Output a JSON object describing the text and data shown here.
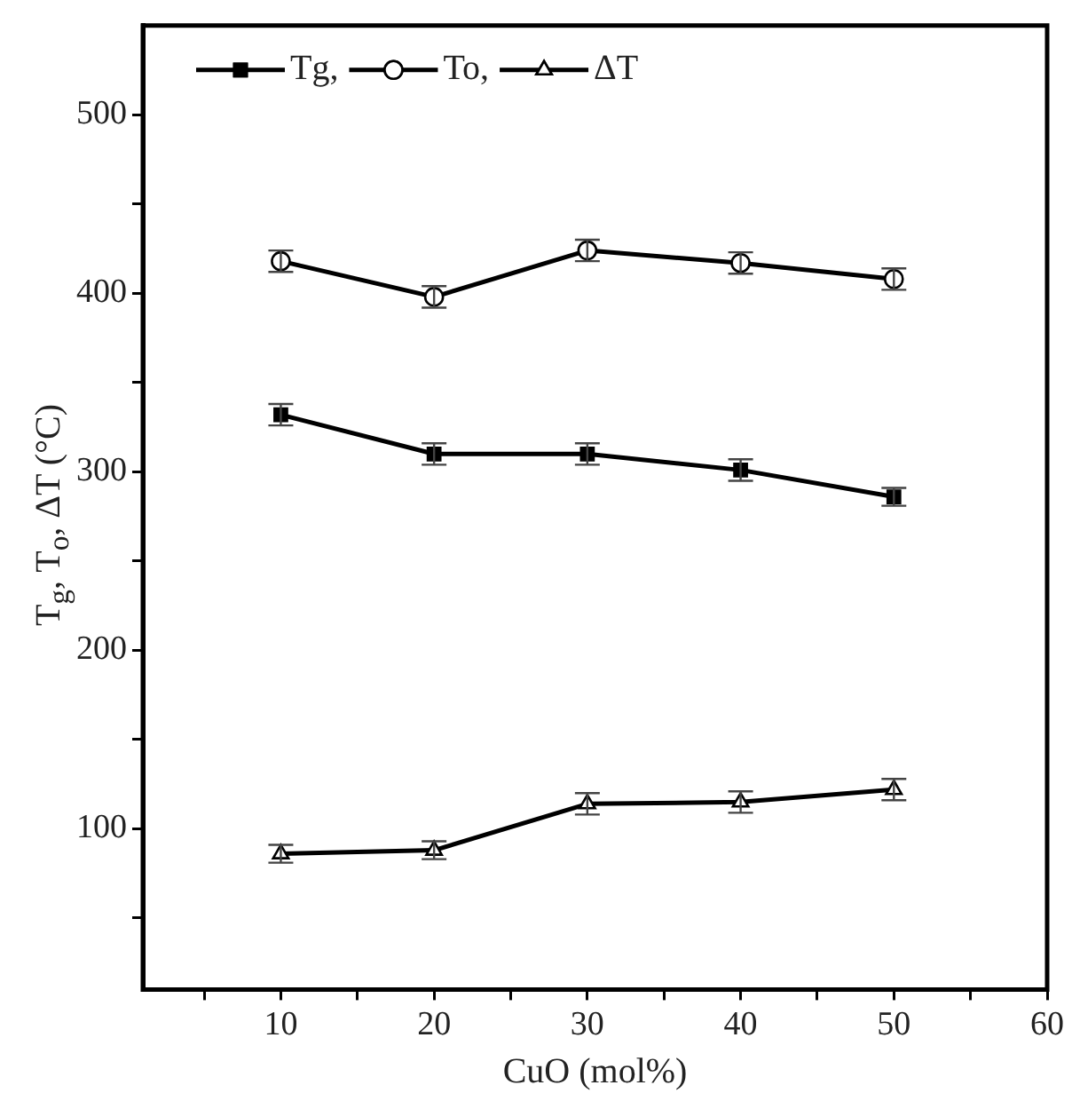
{
  "chart_data": {
    "type": "line",
    "xlabel": "CuO (mol%)",
    "ylabel": "T$_{g}$, T$_{o}$, ΔT (°C)",
    "x": [
      10,
      20,
      30,
      40,
      50
    ],
    "series": [
      {
        "name": "Tg,",
        "color": "#000000",
        "marker": "square",
        "values": [
          332,
          310,
          310,
          301,
          286
        ],
        "errors": [
          6,
          6,
          6,
          6,
          5
        ]
      },
      {
        "name": "To,",
        "color": "#000000",
        "marker": "circle",
        "values": [
          418,
          398,
          424,
          417,
          408
        ],
        "errors": [
          6,
          6,
          6,
          6,
          6
        ]
      },
      {
        "name": "ΔT",
        "color": "#000000",
        "marker": "triangle",
        "values": [
          86,
          88,
          114,
          115,
          122
        ],
        "errors": [
          5,
          5,
          6,
          6,
          6
        ]
      }
    ],
    "xlim": [
      1,
      60
    ],
    "xticks": [
      {
        "value": 5,
        "label": null
      },
      10,
      {
        "value": 15,
        "label": null
      },
      20,
      {
        "value": 25,
        "label": null
      },
      30,
      {
        "value": 35,
        "label": null
      },
      40,
      {
        "value": 45,
        "label": null
      },
      50,
      {
        "value": 55,
        "label": null
      },
      60
    ],
    "ylim": [
      10,
      550
    ],
    "yticks": [
      {
        "value": 50,
        "label": null
      },
      100,
      {
        "value": 150,
        "label": null
      },
      200,
      {
        "value": 250,
        "label": null
      },
      300,
      {
        "value": 350,
        "label": null
      },
      400,
      {
        "value": 450,
        "label": null
      },
      500
    ],
    "grid": false,
    "legend": "top left",
    "line_style": "solid"
  }
}
